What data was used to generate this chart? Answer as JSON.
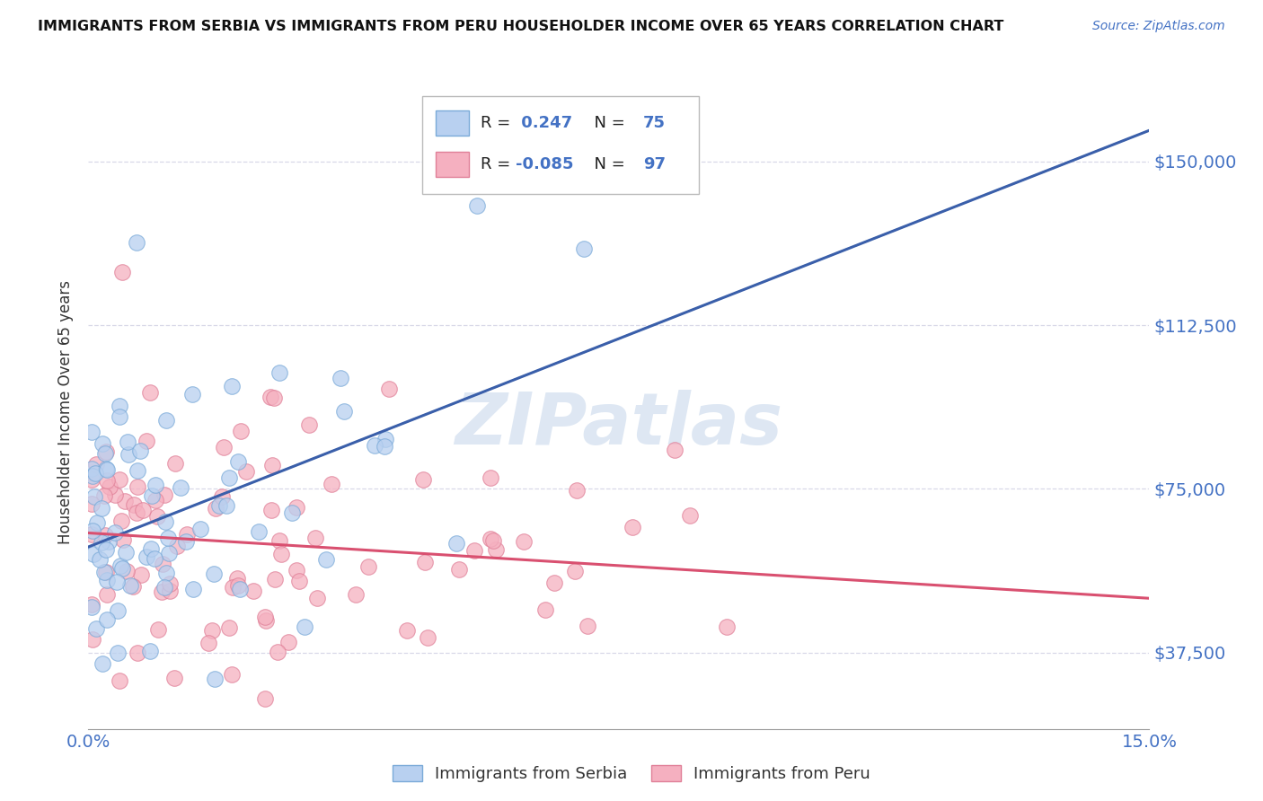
{
  "title": "IMMIGRANTS FROM SERBIA VS IMMIGRANTS FROM PERU HOUSEHOLDER INCOME OVER 65 YEARS CORRELATION CHART",
  "source": "Source: ZipAtlas.com",
  "ylabel": "Householder Income Over 65 years",
  "xlim": [
    0.0,
    15.0
  ],
  "ylim": [
    20000,
    165000
  ],
  "yticks": [
    37500,
    75000,
    112500,
    150000
  ],
  "ytick_labels": [
    "$37,500",
    "$75,000",
    "$112,500",
    "$150,000"
  ],
  "serbia_color": "#b8d0f0",
  "serbia_edge": "#7aaad8",
  "peru_color": "#f5b0c0",
  "peru_edge": "#e08098",
  "serbia_R": 0.247,
  "serbia_N": 75,
  "peru_R": -0.085,
  "peru_N": 97,
  "serbia_line_color": "#3a5faa",
  "peru_line_color": "#d95070",
  "tick_color": "#4472c4",
  "legend_serbia": "Immigrants from Serbia",
  "legend_peru": "Immigrants from Peru",
  "watermark_color": "#c8d8ec",
  "grid_color": "#d8d8e8"
}
